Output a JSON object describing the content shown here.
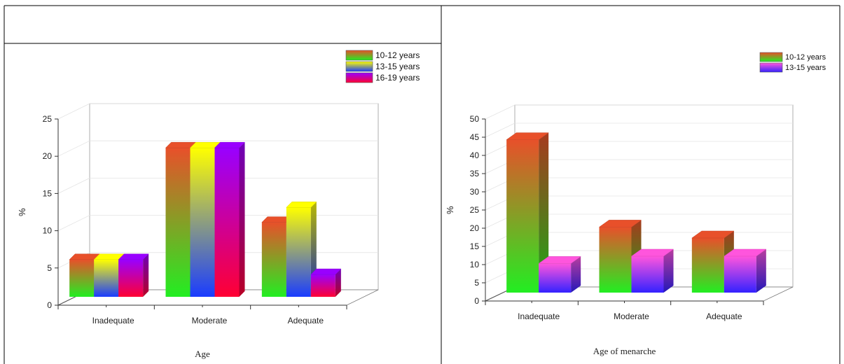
{
  "chart_data": [
    {
      "type": "bar",
      "categories": [
        "Inadequate",
        "Moderate",
        "Adequate"
      ],
      "series": [
        {
          "name": "10-12 years",
          "values": [
            5,
            20,
            10
          ]
        },
        {
          "name": "13-15 years",
          "values": [
            5,
            20,
            12
          ]
        },
        {
          "name": "16-19 years",
          "values": [
            5,
            20,
            3
          ]
        }
      ],
      "xlabel": "Age",
      "ylabel": "%",
      "ylim": [
        0,
        25
      ],
      "yticks": [
        "0",
        "5",
        "10",
        "15",
        "20",
        "25"
      ],
      "grid": true,
      "legend": "top-right",
      "colors": {
        "10-12 years": {
          "top": "#e8502a",
          "bottom": "#22ee22"
        },
        "13-15 years": {
          "top": "#ffff00",
          "bottom": "#1a3cff"
        },
        "16-19 years": {
          "top": "#9900ff",
          "bottom": "#ff0033"
        }
      }
    },
    {
      "type": "bar",
      "categories": [
        "Inadequate",
        "Moderate",
        "Adequate"
      ],
      "series": [
        {
          "name": "10-12 years",
          "values": [
            42,
            18,
            15
          ]
        },
        {
          "name": "13-15 years",
          "values": [
            8,
            10,
            10
          ]
        }
      ],
      "xlabel": "Age of menarche",
      "ylabel": "%",
      "ylim": [
        0,
        50
      ],
      "yticks": [
        "0",
        "5",
        "10",
        "15",
        "20",
        "25",
        "30",
        "35",
        "40",
        "45",
        "50"
      ],
      "grid": true,
      "legend": "top-right",
      "colors": {
        "10-12 years": {
          "top": "#e8502a",
          "bottom": "#22ee22"
        },
        "13-15 years": {
          "top": "#ff55dd",
          "bottom": "#3322ff"
        }
      }
    }
  ]
}
